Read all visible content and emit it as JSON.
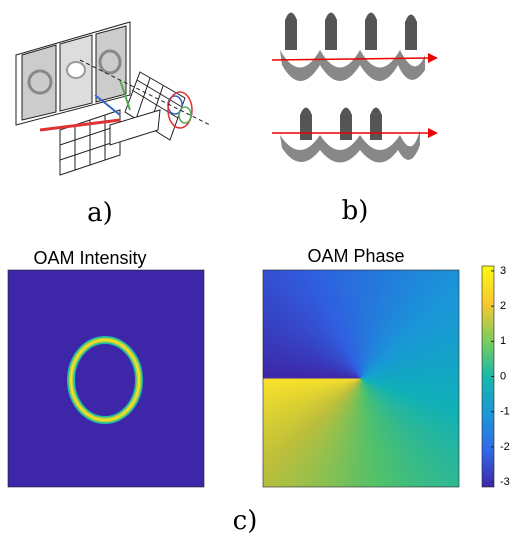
{
  "panels": {
    "a": {
      "label": "a)"
    },
    "b": {
      "label": "b)"
    },
    "c": {
      "label": "c)",
      "intensity": {
        "title": "OAM Intensity"
      },
      "phase": {
        "title": "OAM Phase",
        "colorbar": {
          "clim": [
            -3.14,
            3.14
          ],
          "ticks": [
            3,
            2,
            1,
            0,
            -1,
            -2,
            -3
          ]
        }
      }
    }
  }
}
